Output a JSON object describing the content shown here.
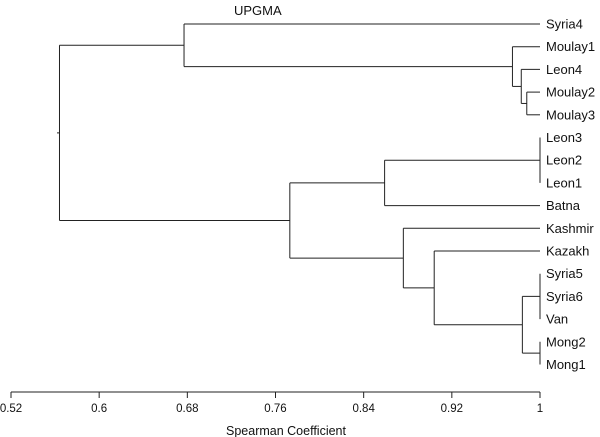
{
  "title": "UPGMA",
  "axis": {
    "label": "Spearman Coefficient",
    "min": 0.52,
    "max": 1,
    "ticks": [
      0.52,
      0.6,
      0.68,
      0.76,
      0.84,
      0.92,
      1
    ],
    "tick_labels": [
      "0.52",
      "0.6",
      "0.68",
      "0.76",
      "0.84",
      "0.92",
      "1"
    ]
  },
  "leaves": [
    "Syria4",
    "Moulay1",
    "Leon4",
    "Moulay2",
    "Moulay3",
    "Leon3",
    "Leon2",
    "Leon1",
    "Batna",
    "Kashmir",
    "Kazakh",
    "Syria5",
    "Syria6",
    "Van",
    "Mong2",
    "Mong1"
  ],
  "tree": {
    "h": 0.564,
    "children": [
      {
        "h": 0.677,
        "children": [
          {
            "leaf": "Syria4"
          },
          {
            "h": 0.975,
            "children": [
              {
                "leaf": "Moulay1"
              },
              {
                "h": 0.983,
                "children": [
                  {
                    "leaf": "Leon4"
                  },
                  {
                    "h": 0.988,
                    "children": [
                      {
                        "leaf": "Moulay2"
                      },
                      {
                        "leaf": "Moulay3"
                      }
                    ]
                  }
                ]
              }
            ]
          }
        ]
      },
      {
        "h": 0.773,
        "children": [
          {
            "h": 0.859,
            "children": [
              {
                "h": 1.0,
                "children": [
                  {
                    "leaf": "Leon3"
                  },
                  {
                    "leaf": "Leon2"
                  },
                  {
                    "leaf": "Leon1"
                  }
                ]
              },
              {
                "leaf": "Batna"
              }
            ]
          },
          {
            "h": 0.876,
            "children": [
              {
                "leaf": "Kashmir"
              },
              {
                "h": 0.904,
                "children": [
                  {
                    "leaf": "Kazakh"
                  },
                  {
                    "h": 0.984,
                    "children": [
                      {
                        "h": 1.0,
                        "children": [
                          {
                            "leaf": "Syria5"
                          },
                          {
                            "leaf": "Syria6"
                          },
                          {
                            "leaf": "Van"
                          }
                        ]
                      },
                      {
                        "h": 1.0,
                        "children": [
                          {
                            "leaf": "Mong2"
                          },
                          {
                            "leaf": "Mong1"
                          }
                        ]
                      }
                    ]
                  }
                ]
              }
            ]
          }
        ]
      }
    ]
  }
}
